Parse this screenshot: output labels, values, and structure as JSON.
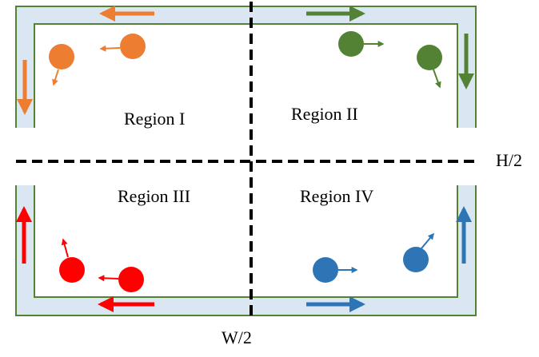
{
  "regions": {
    "r1": "Region I",
    "r2": "Region II",
    "r3": "Region III",
    "r4": "Region IV"
  },
  "axis_labels": {
    "height_half": "H/2",
    "width_half": "W/2"
  },
  "colors": {
    "region_i": "#ed7d31",
    "region_ii": "#548235",
    "region_iii": "#ff0000",
    "region_iv": "#2e75b6",
    "corridor_fill": "#dae7f3",
    "boundary": "#548235",
    "divider": "#000000"
  }
}
